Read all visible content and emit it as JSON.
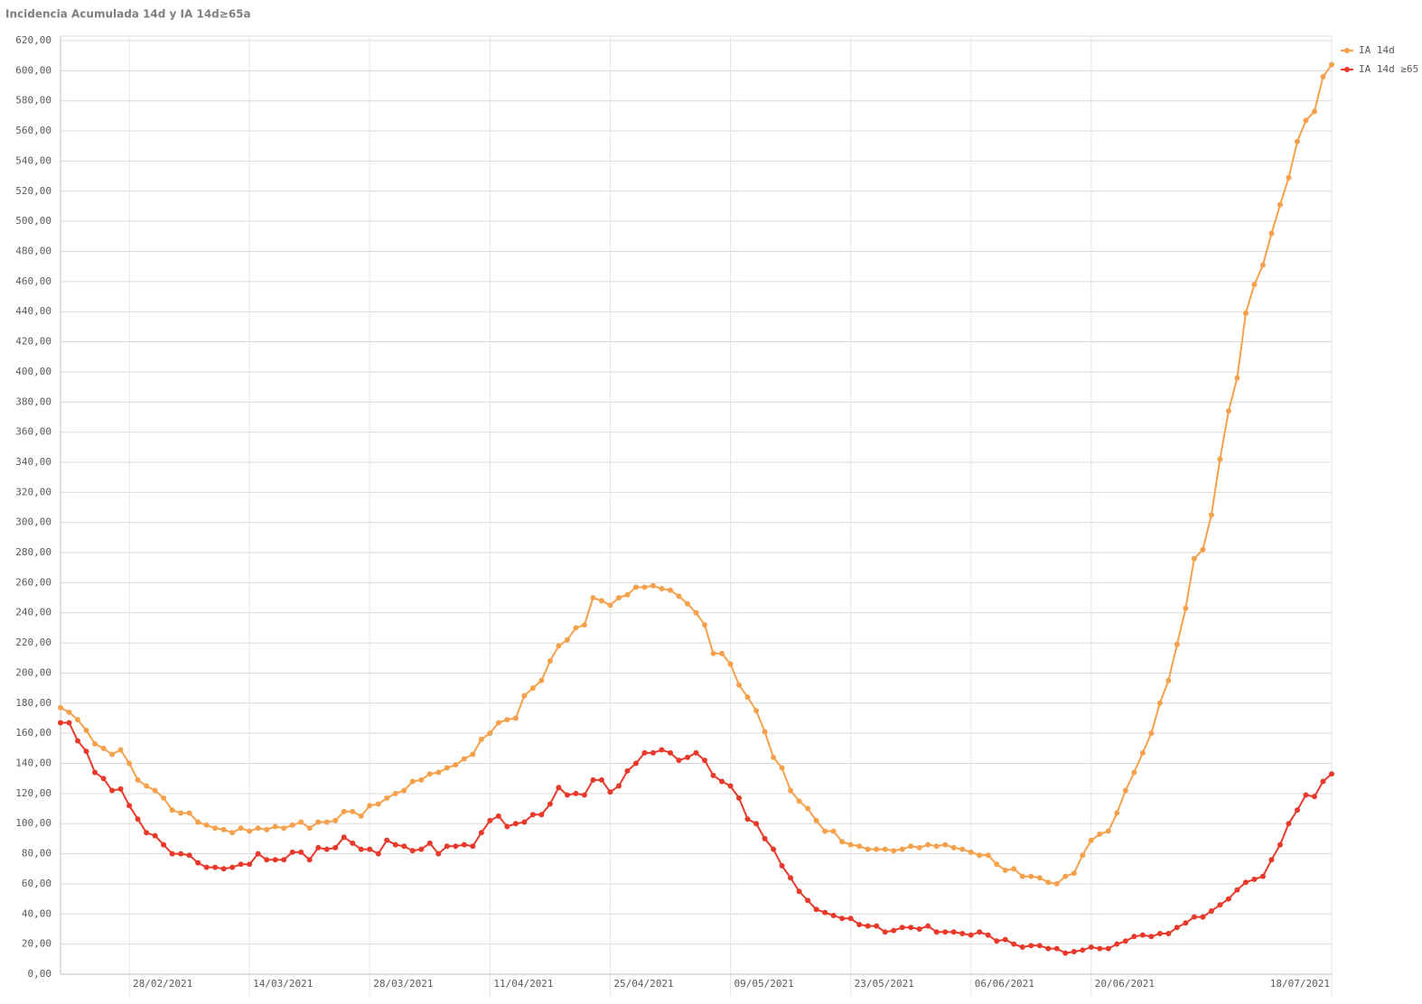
{
  "chart_data": {
    "type": "line",
    "title": "Incidencia Acumulada 14d y IA 14d≥65a",
    "x": [
      "20/02/2021",
      "21/02/2021",
      "22/02/2021",
      "23/02/2021",
      "24/02/2021",
      "25/02/2021",
      "26/02/2021",
      "27/02/2021",
      "28/02/2021",
      "01/03/2021",
      "02/03/2021",
      "03/03/2021",
      "04/03/2021",
      "05/03/2021",
      "06/03/2021",
      "07/03/2021",
      "08/03/2021",
      "09/03/2021",
      "10/03/2021",
      "11/03/2021",
      "12/03/2021",
      "13/03/2021",
      "14/03/2021",
      "15/03/2021",
      "16/03/2021",
      "17/03/2021",
      "18/03/2021",
      "19/03/2021",
      "20/03/2021",
      "21/03/2021",
      "22/03/2021",
      "23/03/2021",
      "24/03/2021",
      "25/03/2021",
      "26/03/2021",
      "27/03/2021",
      "28/03/2021",
      "29/03/2021",
      "30/03/2021",
      "31/03/2021",
      "01/04/2021",
      "02/04/2021",
      "03/04/2021",
      "04/04/2021",
      "05/04/2021",
      "06/04/2021",
      "07/04/2021",
      "08/04/2021",
      "09/04/2021",
      "10/04/2021",
      "11/04/2021",
      "12/04/2021",
      "13/04/2021",
      "14/04/2021",
      "15/04/2021",
      "16/04/2021",
      "17/04/2021",
      "18/04/2021",
      "19/04/2021",
      "20/04/2021",
      "21/04/2021",
      "22/04/2021",
      "23/04/2021",
      "24/04/2021",
      "25/04/2021",
      "26/04/2021",
      "27/04/2021",
      "28/04/2021",
      "29/04/2021",
      "30/04/2021",
      "01/05/2021",
      "02/05/2021",
      "03/05/2021",
      "04/05/2021",
      "05/05/2021",
      "06/05/2021",
      "07/05/2021",
      "08/05/2021",
      "09/05/2021",
      "10/05/2021",
      "11/05/2021",
      "12/05/2021",
      "13/05/2021",
      "14/05/2021",
      "15/05/2021",
      "16/05/2021",
      "17/05/2021",
      "18/05/2021",
      "19/05/2021",
      "20/05/2021",
      "21/05/2021",
      "22/05/2021",
      "23/05/2021",
      "24/05/2021",
      "25/05/2021",
      "26/05/2021",
      "27/05/2021",
      "28/05/2021",
      "29/05/2021",
      "30/05/2021",
      "31/05/2021",
      "01/06/2021",
      "02/06/2021",
      "03/06/2021",
      "04/06/2021",
      "05/06/2021",
      "06/06/2021",
      "07/06/2021",
      "08/06/2021",
      "09/06/2021",
      "10/06/2021",
      "11/06/2021",
      "12/06/2021",
      "13/06/2021",
      "14/06/2021",
      "15/06/2021",
      "16/06/2021",
      "17/06/2021",
      "18/06/2021",
      "19/06/2021",
      "20/06/2021",
      "21/06/2021",
      "22/06/2021",
      "23/06/2021",
      "24/06/2021",
      "25/06/2021",
      "26/06/2021",
      "27/06/2021",
      "28/06/2021",
      "29/06/2021",
      "30/06/2021",
      "01/07/2021",
      "02/07/2021",
      "03/07/2021",
      "04/07/2021",
      "05/07/2021",
      "06/07/2021",
      "07/07/2021",
      "08/07/2021",
      "09/07/2021",
      "10/07/2021",
      "11/07/2021",
      "12/07/2021",
      "13/07/2021",
      "14/07/2021",
      "15/07/2021",
      "16/07/2021",
      "17/07/2021",
      "18/07/2021"
    ],
    "series": [
      {
        "name": "IA 14d",
        "color": "#f5a04a",
        "values": [
          177,
          174,
          169,
          162,
          153,
          150,
          146,
          149,
          140,
          129,
          125,
          122,
          117,
          109,
          107,
          107,
          101,
          99,
          97,
          96,
          94,
          97,
          95,
          97,
          96,
          98,
          97,
          99,
          101,
          97,
          101,
          101,
          102,
          108,
          108,
          105,
          112,
          113,
          117,
          120,
          122,
          128,
          129,
          133,
          134,
          137,
          139,
          143,
          146,
          156,
          160,
          167,
          169,
          170,
          185,
          190,
          195,
          208,
          218,
          222,
          230,
          232,
          250,
          248,
          245,
          250,
          252,
          257,
          257,
          258,
          256,
          255,
          251,
          246,
          240,
          232,
          213,
          213,
          206,
          192,
          184,
          175,
          161,
          144,
          137,
          122,
          115,
          110,
          102,
          95,
          95,
          88,
          86,
          85,
          83,
          83,
          83,
          82,
          83,
          85,
          84,
          86,
          85,
          86,
          84,
          83,
          81,
          79,
          79,
          73,
          69,
          70,
          65,
          65,
          64,
          61,
          60,
          65,
          67,
          79,
          89,
          93,
          95,
          107,
          122,
          134,
          147,
          160,
          180,
          195,
          219,
          243,
          276,
          282,
          305,
          342,
          374,
          396,
          439,
          458,
          471,
          492,
          511,
          529,
          553,
          567,
          573,
          596,
          604
        ]
      },
      {
        "name": "IA 14d ≥65",
        "color": "#e8392a",
        "values": [
          167,
          167,
          155,
          148,
          134,
          130,
          122,
          123,
          112,
          103,
          94,
          92,
          86,
          80,
          80,
          79,
          74,
          71,
          71,
          70,
          71,
          73,
          73,
          80,
          76,
          76,
          76,
          81,
          81,
          76,
          84,
          83,
          84,
          91,
          87,
          83,
          83,
          80,
          89,
          86,
          85,
          82,
          83,
          87,
          80,
          85,
          85,
          86,
          85,
          94,
          102,
          105,
          98,
          100,
          101,
          106,
          106,
          113,
          124,
          119,
          120,
          119,
          129,
          129,
          121,
          125,
          135,
          140,
          147,
          147,
          149,
          147,
          142,
          144,
          147,
          142,
          132,
          128,
          125,
          117,
          103,
          100,
          90,
          83,
          72,
          64,
          55,
          49,
          43,
          41,
          39,
          37,
          37,
          33,
          32,
          32,
          28,
          29,
          31,
          31,
          30,
          32,
          28,
          28,
          28,
          27,
          26,
          28,
          26,
          22,
          23,
          20,
          18,
          19,
          19,
          17,
          17,
          14,
          15,
          16,
          18,
          17,
          17,
          20,
          22,
          25,
          26,
          25,
          27,
          27,
          31,
          34,
          38,
          38,
          42,
          46,
          50,
          56,
          61,
          63,
          65,
          76,
          86,
          100,
          109,
          119,
          118,
          128,
          133
        ]
      }
    ],
    "xticks": [
      "28/02/2021",
      "14/03/2021",
      "28/03/2021",
      "11/04/2021",
      "25/04/2021",
      "09/05/2021",
      "23/05/2021",
      "06/06/2021",
      "20/06/2021",
      "18/07/2021"
    ],
    "ylim": [
      0,
      620
    ],
    "yticks": [
      {
        "value": 0,
        "label": "0,00"
      },
      {
        "value": 20,
        "label": "20,00"
      },
      {
        "value": 40,
        "label": "40,00"
      },
      {
        "value": 60,
        "label": "60,00"
      },
      {
        "value": 80,
        "label": "80,00"
      },
      {
        "value": 100,
        "label": "100,00"
      },
      {
        "value": 120,
        "label": "120,00"
      },
      {
        "value": 140,
        "label": "140,00"
      },
      {
        "value": 160,
        "label": "160,00"
      },
      {
        "value": 180,
        "label": "180,00"
      },
      {
        "value": 200,
        "label": "200,00"
      },
      {
        "value": 220,
        "label": "220,00"
      },
      {
        "value": 240,
        "label": "240,00"
      },
      {
        "value": 260,
        "label": "260,00"
      },
      {
        "value": 280,
        "label": "280,00"
      },
      {
        "value": 300,
        "label": "300,00"
      },
      {
        "value": 320,
        "label": "320,00"
      },
      {
        "value": 340,
        "label": "340,00"
      },
      {
        "value": 360,
        "label": "360,00"
      },
      {
        "value": 380,
        "label": "380,00"
      },
      {
        "value": 400,
        "label": "400,00"
      },
      {
        "value": 420,
        "label": "420,00"
      },
      {
        "value": 440,
        "label": "440,00"
      },
      {
        "value": 460,
        "label": "460,00"
      },
      {
        "value": 480,
        "label": "480,00"
      },
      {
        "value": 500,
        "label": "500,00"
      },
      {
        "value": 520,
        "label": "520,00"
      },
      {
        "value": 540,
        "label": "540,00"
      },
      {
        "value": 560,
        "label": "560,00"
      },
      {
        "value": 580,
        "label": "580,00"
      },
      {
        "value": 600,
        "label": "600,00"
      },
      {
        "value": 620,
        "label": "620,00"
      }
    ],
    "grid": true,
    "legend": "top-right"
  }
}
